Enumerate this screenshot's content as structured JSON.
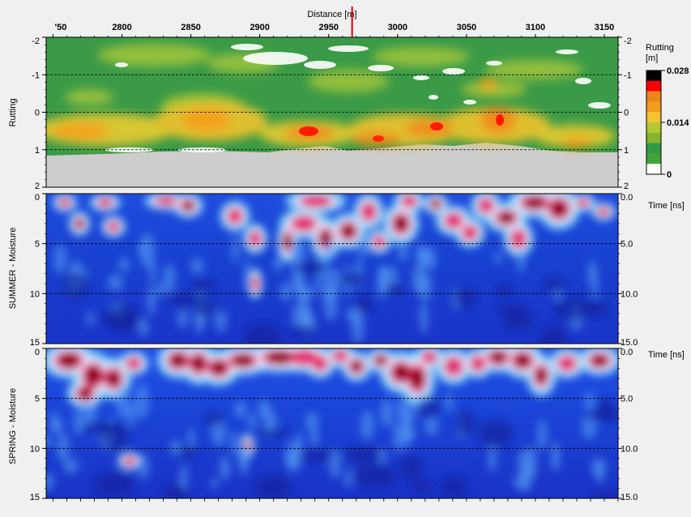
{
  "chart_data": [
    {
      "type": "heatmap",
      "name": "rutting",
      "title": "",
      "top_axis_label": "Distance [m]",
      "x_ticks": [
        "'50",
        "2800",
        "2850",
        "2900",
        "2950",
        "3000",
        "3050",
        "3100",
        "3150"
      ],
      "x_range": [
        2745,
        3160
      ],
      "ylabel": "Rutting",
      "y_ticks_left": [
        "-2",
        "-1",
        "0",
        "1",
        "2"
      ],
      "y_ticks_right": [
        "-2",
        "-1",
        "0",
        "1",
        "2"
      ],
      "y_range": [
        -2,
        2
      ],
      "dashed_grid_y": [
        -1,
        0,
        1
      ],
      "cursor_distance": 2967,
      "colorbar": {
        "title_line1": "Rutting",
        "title_line2": "[m]",
        "labels": [
          "0.028",
          "0.014",
          "0"
        ],
        "range": [
          0,
          0.028
        ],
        "colors": [
          "#000000",
          "#ff0000",
          "#e9851b",
          "#f39d1c",
          "#f4c430",
          "#b3c832",
          "#87b52d",
          "#319a48",
          "#43a33a",
          "#ffffff"
        ]
      },
      "hotspots": [
        {
          "distance": 2771,
          "depth": 0.6,
          "value": 0.014
        },
        {
          "distance": 2858,
          "depth": 0.2,
          "value": 0.017
        },
        {
          "distance": 2932,
          "depth": 0.5,
          "value": 0.026
        },
        {
          "distance": 2960,
          "depth": 0.7,
          "value": 0.02
        },
        {
          "distance": 2998,
          "depth": 0.4,
          "value": 0.018
        },
        {
          "distance": 3012,
          "depth": 0.4,
          "value": 0.025
        },
        {
          "distance": 3050,
          "depth": 0.6,
          "value": 0.02
        },
        {
          "distance": 3064,
          "depth": 0.2,
          "value": 0.027
        },
        {
          "distance": 3108,
          "depth": 0.8,
          "value": 0.016
        }
      ]
    },
    {
      "type": "heatmap",
      "name": "summer",
      "ylabel": "SUMMER - Moisture",
      "y_ticks_left": [
        "0",
        "5",
        "10",
        "15"
      ],
      "y_ticks_right": [
        "0.0",
        "5.0",
        "10.0",
        "15.0"
      ],
      "right_axis_label": "Time [ns]",
      "y_range": [
        0,
        15
      ],
      "dashed_grid_y": [
        5,
        10
      ]
    },
    {
      "type": "heatmap",
      "name": "spring",
      "ylabel": "SPRING - Moisture",
      "y_ticks_left": [
        "0",
        "5",
        "10",
        "15"
      ],
      "y_ticks_right": [
        "0.0",
        "5.0",
        "10.0",
        "15.0"
      ],
      "right_axis_label": "Time [ns]",
      "y_range": [
        0,
        15
      ],
      "dashed_grid_y": [
        5,
        10
      ]
    }
  ]
}
